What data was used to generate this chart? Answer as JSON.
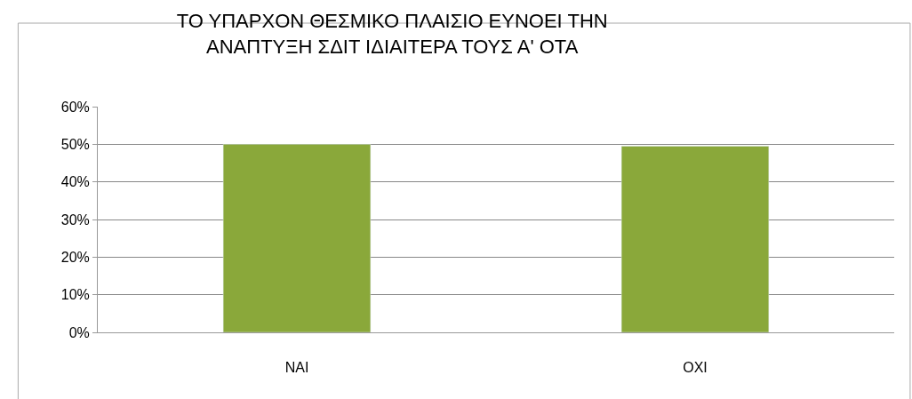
{
  "chart_data": {
    "type": "bar",
    "title": "ΤΟ ΥΠΑΡΧΟΝ ΘΕΣΜΙΚΟ ΠΛΑΙΣΙΟ ΕΥΝΟΕΙ ΤΗΝ\nΑΝΑΠΤΥΞΗ ΣΔΙΤ ΙΔΙΑΙΤΕΡΑ ΤΟΥΣ Α' ΟΤΑ",
    "categories": [
      "ΝΑΙ",
      "ΟΧΙ"
    ],
    "values": [
      50,
      49.5
    ],
    "color": "#8aa83a",
    "ylim": [
      0,
      60
    ],
    "yticks": [
      {
        "value": 0,
        "label": "0%"
      },
      {
        "value": 10,
        "label": "10%"
      },
      {
        "value": 20,
        "label": "20%"
      },
      {
        "value": 30,
        "label": "30%"
      },
      {
        "value": 40,
        "label": "40%"
      },
      {
        "value": 50,
        "label": "50%"
      },
      {
        "value": 60,
        "label": "60%"
      }
    ],
    "grid": "y"
  }
}
